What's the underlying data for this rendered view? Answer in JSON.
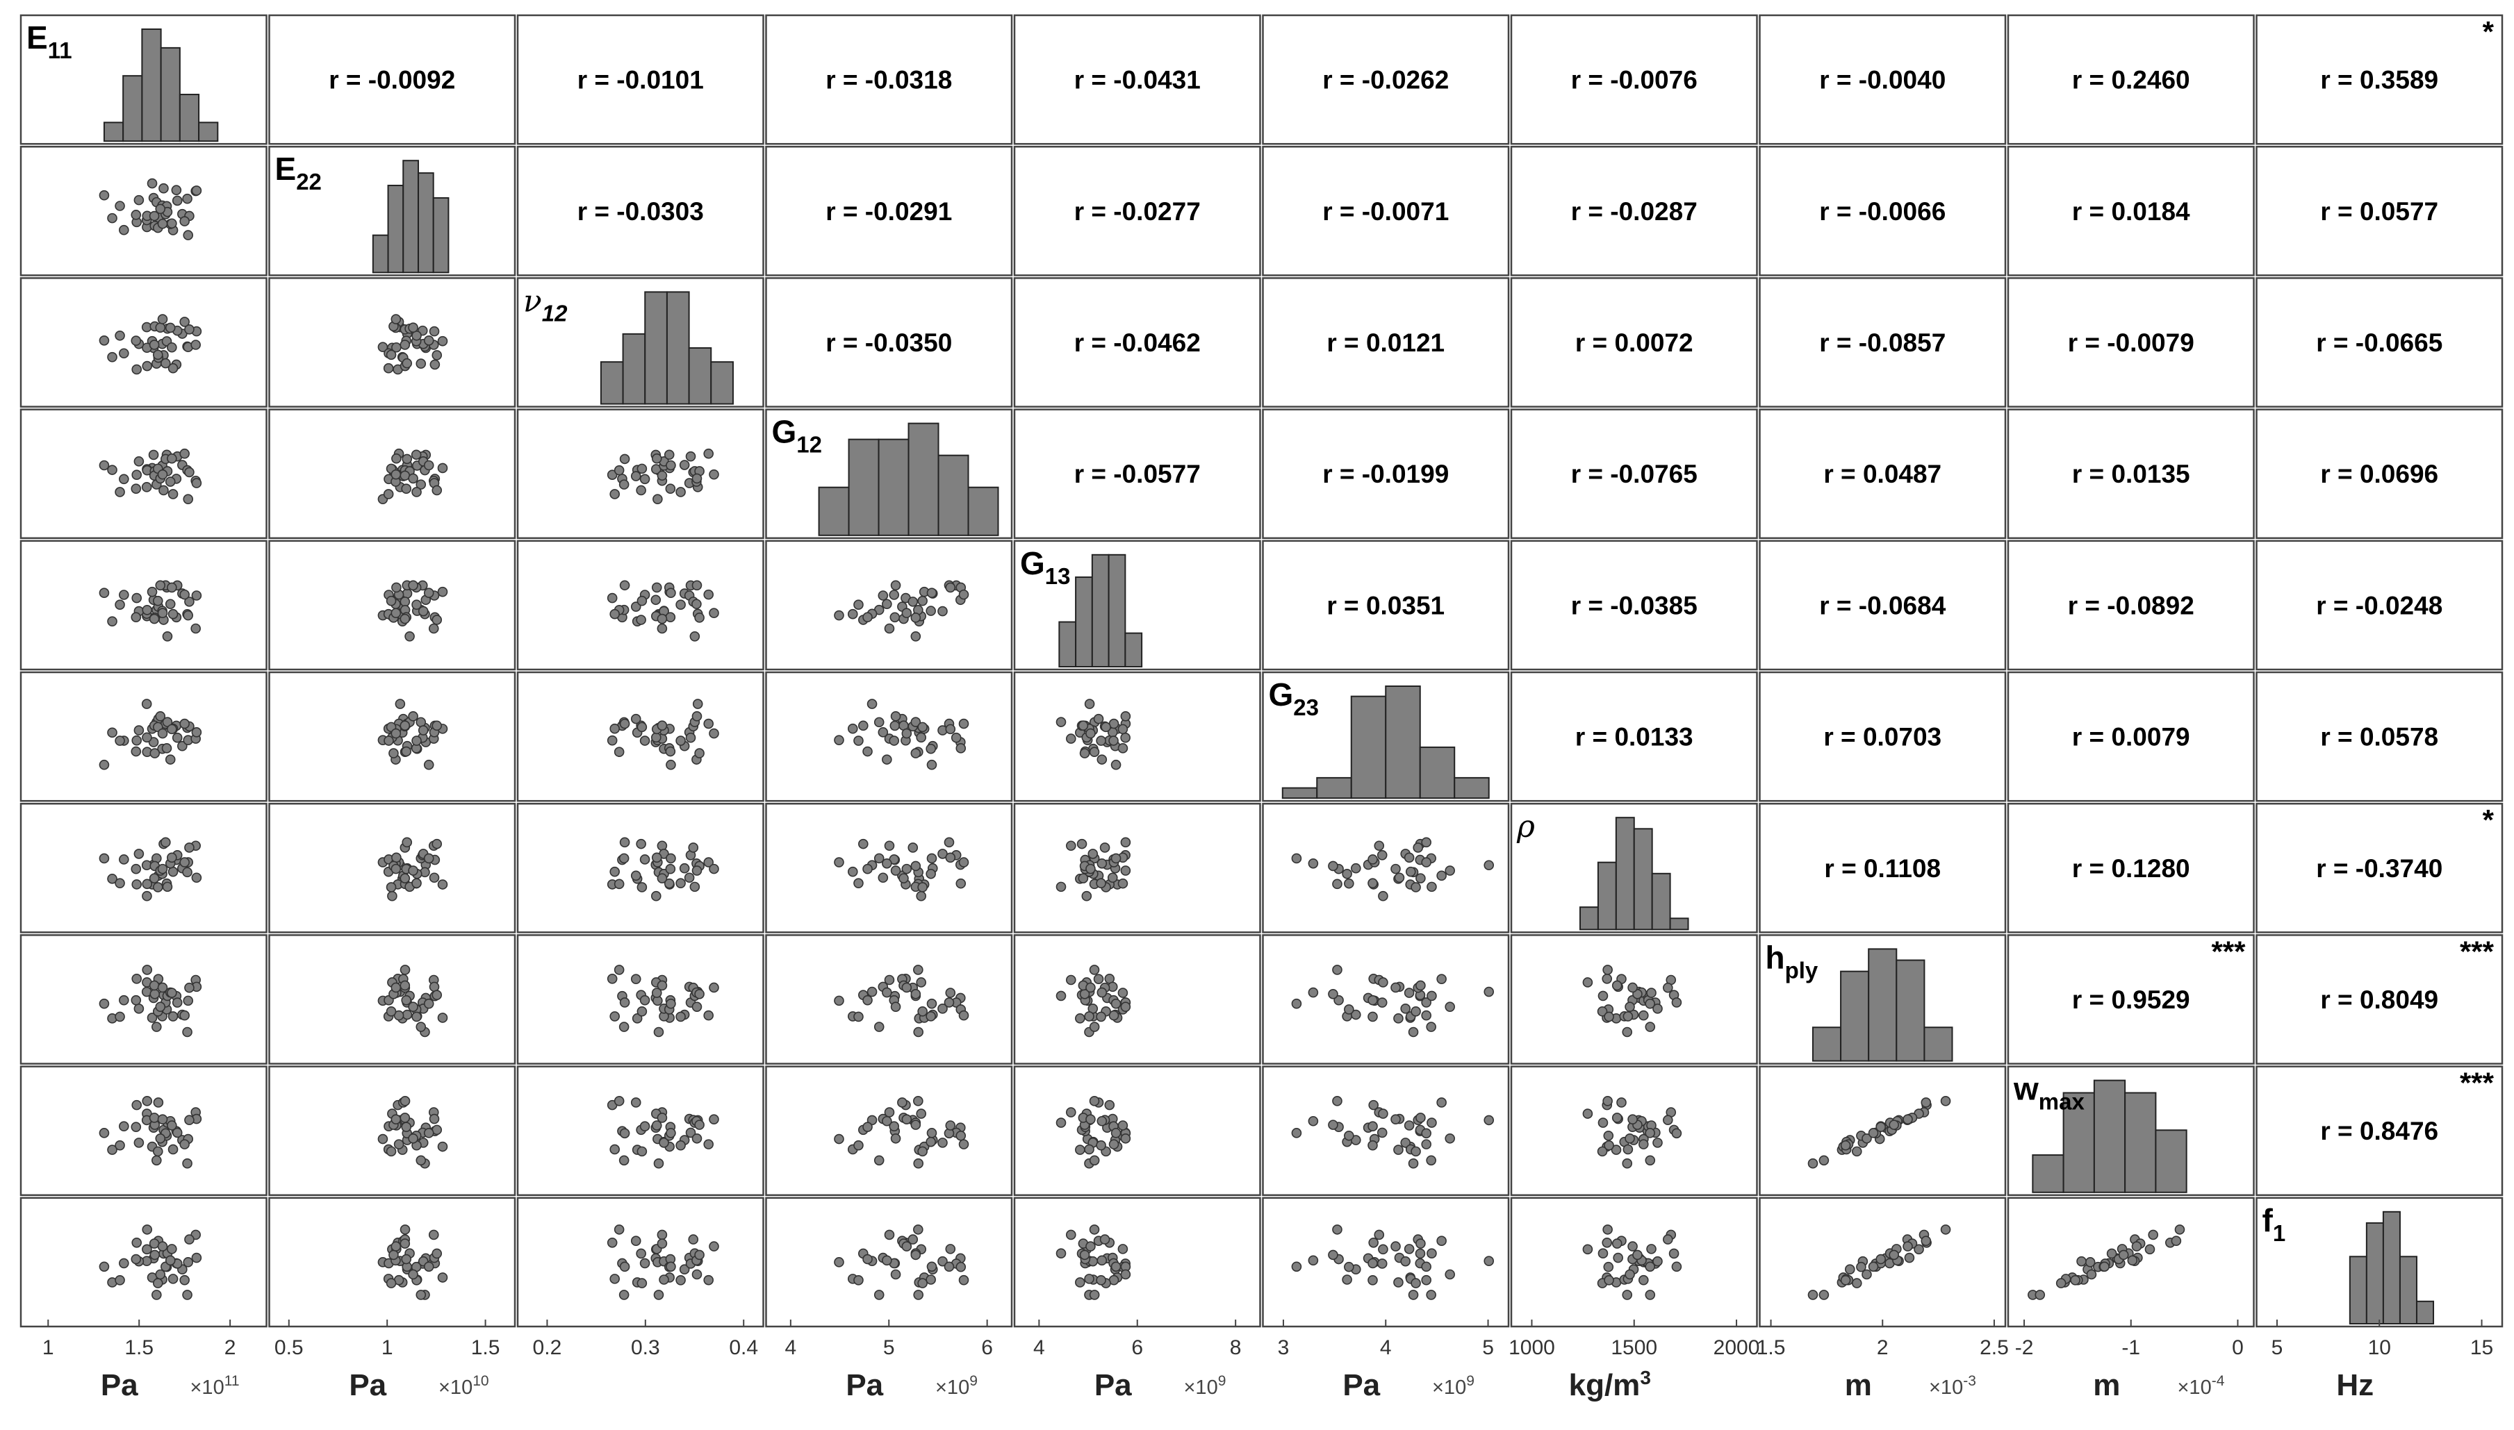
{
  "chart_data": {
    "type": "scatter-matrix",
    "variables": [
      {
        "key": "E11",
        "label": "E",
        "sub": "11",
        "greek": false,
        "unit": "Pa",
        "unit_sup": "",
        "multiplier": "×10",
        "multiplier_exp": "11",
        "ticks": [
          "1",
          "1.5",
          "2"
        ],
        "xlim": [
          0.85,
          2.2
        ],
        "mean": 1.62,
        "sd": 0.13,
        "hist": [
          2,
          7,
          12,
          10,
          5,
          2
        ]
      },
      {
        "key": "E22",
        "label": "E",
        "sub": "22",
        "greek": false,
        "unit": "Pa",
        "unit_sup": "",
        "multiplier": "×10",
        "multiplier_exp": "10",
        "ticks": [
          "0.5",
          "1",
          "1.5"
        ],
        "xlim": [
          0.4,
          1.65
        ],
        "mean": 1.12,
        "sd": 0.08,
        "hist": [
          3,
          7,
          9,
          8,
          6
        ]
      },
      {
        "key": "nu12",
        "label": "ν",
        "sub": "12",
        "greek": true,
        "unit": "",
        "unit_sup": "",
        "multiplier": "",
        "multiplier_exp": "",
        "ticks": [
          "0.2",
          "0.3",
          "0.4"
        ],
        "xlim": [
          0.17,
          0.42
        ],
        "mean": 0.322,
        "sd": 0.028,
        "hist": [
          3,
          5,
          8,
          8,
          4,
          3
        ]
      },
      {
        "key": "G12",
        "label": "G",
        "sub": "12",
        "greek": false,
        "unit": "Pa",
        "unit_sup": "",
        "multiplier": "×10",
        "multiplier_exp": "9",
        "ticks": [
          "4",
          "5",
          "6"
        ],
        "xlim": [
          3.75,
          6.25
        ],
        "mean": 5.2,
        "sd": 0.38,
        "hist": [
          3,
          6,
          6,
          7,
          5,
          3
        ]
      },
      {
        "key": "G13",
        "label": "G",
        "sub": "13",
        "greek": false,
        "unit": "Pa",
        "unit_sup": "",
        "multiplier": "×10",
        "multiplier_exp": "9",
        "ticks": [
          "4",
          "6",
          "8"
        ],
        "xlim": [
          3.5,
          8.5
        ],
        "mean": 5.25,
        "sd": 0.35,
        "hist": [
          4,
          8,
          10,
          10,
          3
        ]
      },
      {
        "key": "G23",
        "label": "G",
        "sub": "23",
        "greek": false,
        "unit": "Pa",
        "unit_sup": "",
        "multiplier": "×10",
        "multiplier_exp": "9",
        "ticks": [
          "3",
          "4",
          "5"
        ],
        "xlim": [
          2.8,
          5.2
        ],
        "mean": 4.0,
        "sd": 0.42,
        "hist": [
          1,
          2,
          10,
          11,
          5,
          2
        ]
      },
      {
        "key": "rho",
        "label": "ρ",
        "sub": "",
        "greek": true,
        "unit": "kg/m",
        "unit_sup": "3",
        "multiplier": "",
        "multiplier_exp": "",
        "ticks": [
          "1000",
          "1500",
          "2000"
        ],
        "xlim": [
          900,
          2100
        ],
        "mean": 1500,
        "sd": 110,
        "hist": [
          2,
          6,
          10,
          9,
          5,
          1
        ]
      },
      {
        "key": "hply",
        "label": "h",
        "sub": "ply",
        "greek": false,
        "unit": "m",
        "unit_sup": "",
        "multiplier": "×10",
        "multiplier_exp": "-3",
        "ticks": [
          "1.5",
          "2",
          "2.5"
        ],
        "xlim": [
          1.45,
          2.55
        ],
        "mean": 2.0,
        "sd": 0.13,
        "hist": [
          3,
          8,
          10,
          9,
          3
        ]
      },
      {
        "key": "wmax",
        "label": "w",
        "sub": "max",
        "greek": false,
        "unit": "m",
        "unit_sup": "",
        "multiplier": "×10",
        "multiplier_exp": "-4",
        "ticks": [
          "-2",
          "-1",
          "0"
        ],
        "xlim": [
          -2.15,
          0.15
        ],
        "mean": -1.2,
        "sd": 0.3,
        "hist": [
          3,
          8,
          9,
          8,
          5
        ]
      },
      {
        "key": "f1",
        "label": "f",
        "sub": "1",
        "greek": false,
        "unit": "Hz",
        "unit_sup": "",
        "multiplier": "",
        "multiplier_exp": "",
        "ticks": [
          "5",
          "10",
          "15"
        ],
        "xlim": [
          4,
          16
        ],
        "mean": 10.6,
        "sd": 0.85,
        "hist": [
          6,
          9,
          10,
          6,
          2
        ]
      }
    ],
    "correlations": [
      {
        "row": 0,
        "col": 1,
        "r": "r = -0.0092",
        "stars": ""
      },
      {
        "row": 0,
        "col": 2,
        "r": "r = -0.0101",
        "stars": ""
      },
      {
        "row": 0,
        "col": 3,
        "r": "r = -0.0318",
        "stars": ""
      },
      {
        "row": 0,
        "col": 4,
        "r": "r = -0.0431",
        "stars": ""
      },
      {
        "row": 0,
        "col": 5,
        "r": "r = -0.0262",
        "stars": ""
      },
      {
        "row": 0,
        "col": 6,
        "r": "r = -0.0076",
        "stars": ""
      },
      {
        "row": 0,
        "col": 7,
        "r": "r = -0.0040",
        "stars": ""
      },
      {
        "row": 0,
        "col": 8,
        "r": "r = 0.2460",
        "stars": ""
      },
      {
        "row": 0,
        "col": 9,
        "r": "r = 0.3589",
        "stars": "*"
      },
      {
        "row": 1,
        "col": 2,
        "r": "r = -0.0303",
        "stars": ""
      },
      {
        "row": 1,
        "col": 3,
        "r": "r = -0.0291",
        "stars": ""
      },
      {
        "row": 1,
        "col": 4,
        "r": "r = -0.0277",
        "stars": ""
      },
      {
        "row": 1,
        "col": 5,
        "r": "r = -0.0071",
        "stars": ""
      },
      {
        "row": 1,
        "col": 6,
        "r": "r = -0.0287",
        "stars": ""
      },
      {
        "row": 1,
        "col": 7,
        "r": "r = -0.0066",
        "stars": ""
      },
      {
        "row": 1,
        "col": 8,
        "r": "r = 0.0184",
        "stars": ""
      },
      {
        "row": 1,
        "col": 9,
        "r": "r = 0.0577",
        "stars": ""
      },
      {
        "row": 2,
        "col": 3,
        "r": "r = -0.0350",
        "stars": ""
      },
      {
        "row": 2,
        "col": 4,
        "r": "r = -0.0462",
        "stars": ""
      },
      {
        "row": 2,
        "col": 5,
        "r": "r = 0.0121",
        "stars": ""
      },
      {
        "row": 2,
        "col": 6,
        "r": "r = 0.0072",
        "stars": ""
      },
      {
        "row": 2,
        "col": 7,
        "r": "r = -0.0857",
        "stars": ""
      },
      {
        "row": 2,
        "col": 8,
        "r": "r = -0.0079",
        "stars": ""
      },
      {
        "row": 2,
        "col": 9,
        "r": "r = -0.0665",
        "stars": ""
      },
      {
        "row": 3,
        "col": 4,
        "r": "r = -0.0577",
        "stars": ""
      },
      {
        "row": 3,
        "col": 5,
        "r": "r = -0.0199",
        "stars": ""
      },
      {
        "row": 3,
        "col": 6,
        "r": "r = -0.0765",
        "stars": ""
      },
      {
        "row": 3,
        "col": 7,
        "r": "r = 0.0487",
        "stars": ""
      },
      {
        "row": 3,
        "col": 8,
        "r": "r = 0.0135",
        "stars": ""
      },
      {
        "row": 3,
        "col": 9,
        "r": "r = 0.0696",
        "stars": ""
      },
      {
        "row": 4,
        "col": 5,
        "r": "r = 0.0351",
        "stars": ""
      },
      {
        "row": 4,
        "col": 6,
        "r": "r = -0.0385",
        "stars": ""
      },
      {
        "row": 4,
        "col": 7,
        "r": "r = -0.0684",
        "stars": ""
      },
      {
        "row": 4,
        "col": 8,
        "r": "r = -0.0892",
        "stars": ""
      },
      {
        "row": 4,
        "col": 9,
        "r": "r = -0.0248",
        "stars": ""
      },
      {
        "row": 5,
        "col": 6,
        "r": "r = 0.0133",
        "stars": ""
      },
      {
        "row": 5,
        "col": 7,
        "r": "r = 0.0703",
        "stars": ""
      },
      {
        "row": 5,
        "col": 8,
        "r": "r = 0.0079",
        "stars": ""
      },
      {
        "row": 5,
        "col": 9,
        "r": "r = 0.0578",
        "stars": ""
      },
      {
        "row": 6,
        "col": 7,
        "r": "r = 0.1108",
        "stars": ""
      },
      {
        "row": 6,
        "col": 8,
        "r": "r = 0.1280",
        "stars": ""
      },
      {
        "row": 6,
        "col": 9,
        "r": "r = -0.3740",
        "stars": "*"
      },
      {
        "row": 7,
        "col": 8,
        "r": "r = 0.9529",
        "stars": "***"
      },
      {
        "row": 7,
        "col": 9,
        "r": "r = 0.8049",
        "stars": "***"
      },
      {
        "row": 8,
        "col": 9,
        "r": "r = 0.8476",
        "stars": "***"
      }
    ],
    "n_samples": 36,
    "colors": {
      "marker_fill": "#7f7f7f",
      "marker_edge": "#333333",
      "bar_fill": "#808080",
      "bar_edge": "#222222",
      "frame": "#444444"
    }
  }
}
